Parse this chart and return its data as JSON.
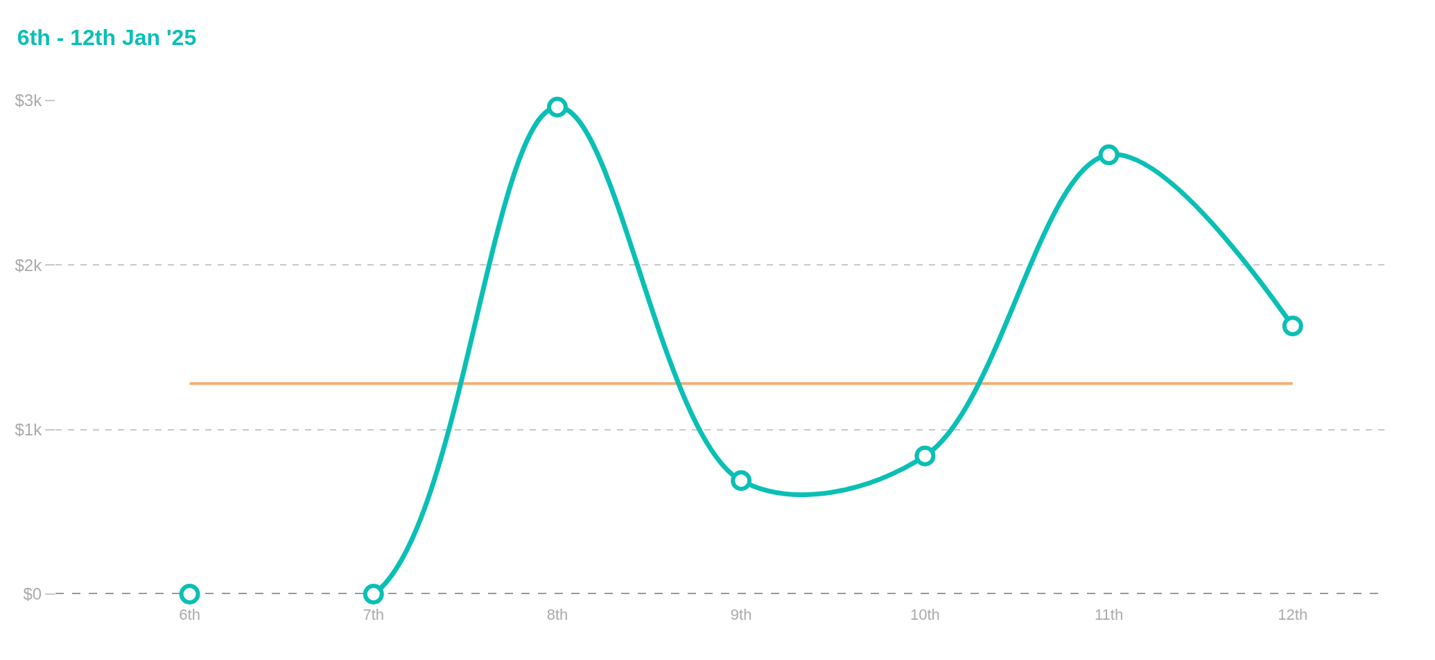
{
  "chart_data": {
    "type": "line",
    "title": "6th - 12th Jan '25",
    "categories": [
      "6th",
      "7th",
      "8th",
      "9th",
      "10th",
      "11th",
      "12th"
    ],
    "series": [
      {
        "color": "#0abfb5",
        "values": [
          0,
          0,
          2960,
          690,
          840,
          2670,
          1630
        ]
      }
    ],
    "ylim": [
      0,
      3000
    ],
    "yticks": [
      {
        "value": 0,
        "label": "$0"
      },
      {
        "value": 1000,
        "label": "$1k"
      },
      {
        "value": 2000,
        "label": "$2k"
      },
      {
        "value": 3000,
        "label": "$3k"
      }
    ],
    "ref_lines": [
      {
        "axis": "y",
        "value": 1280,
        "color": "#f4ad74"
      }
    ],
    "grid": "y",
    "legend": false,
    "marker": "circle",
    "line_style": "solid"
  }
}
